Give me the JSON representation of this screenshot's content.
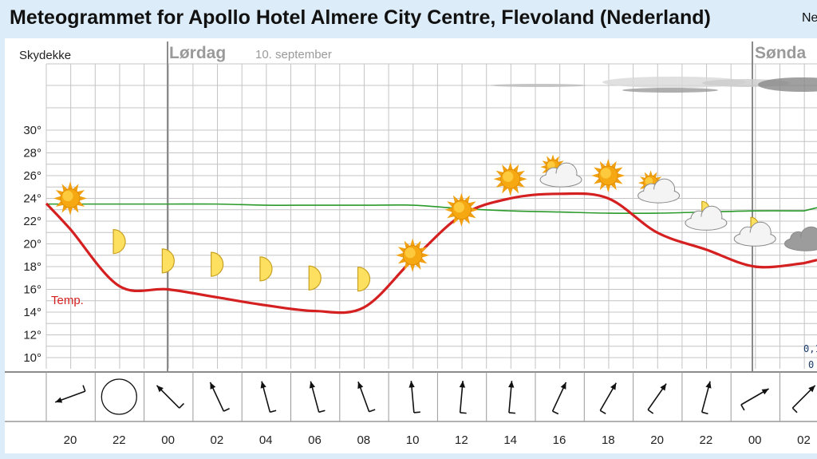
{
  "header": {
    "title": "Meteogrammet for Apollo Hotel Almere City Centre, Flevoland (Nederland)",
    "title_cut": "Ne"
  },
  "labels": {
    "cloud_cover": "Skydekke",
    "temp_series": "Temp.",
    "day1": "Lørdag",
    "date1": "10. september",
    "day2": "Sønda",
    "precip_top": "0,1",
    "precip_bottom": "0"
  },
  "colors": {
    "temp": "#d42020",
    "dew": "#2a9a2a",
    "grid": "#c4c4c4",
    "day_divider": "#8a8a8a"
  },
  "chart_data": {
    "type": "line",
    "x_hours": [
      "20",
      "22",
      "00",
      "02",
      "04",
      "06",
      "08",
      "10",
      "12",
      "14",
      "16",
      "18",
      "20",
      "22",
      "00",
      "02"
    ],
    "y_ticks": [
      "30°",
      "28°",
      "26°",
      "24°",
      "22°",
      "20°",
      "18°",
      "16°",
      "14°",
      "12°",
      "10°"
    ],
    "ylim": [
      10,
      30
    ],
    "series": [
      {
        "name": "Temp.",
        "values": [
          21.3,
          16.3,
          16.0,
          15.3,
          14.6,
          14.1,
          14.4,
          18.6,
          22.5,
          24.0,
          24.4,
          24.0,
          21.0,
          19.5,
          18.0,
          18.3
        ]
      },
      {
        "values": [
          23.5,
          23.5,
          23.5,
          23.5,
          23.4,
          23.4,
          23.4,
          23.4,
          23.1,
          22.9,
          22.8,
          22.7,
          22.7,
          22.8,
          22.9,
          22.9
        ]
      }
    ],
    "symbols": [
      "sun",
      "moon",
      "moon",
      "moon",
      "moon",
      "moon",
      "moon",
      "sun",
      "sun",
      "sun",
      "sun-cloud",
      "sun",
      "sun-cloud",
      "moon-cloud",
      "moon-cloud",
      "cloud"
    ],
    "symbol_temps": [
      24.0,
      20.2,
      18.5,
      18.2,
      17.8,
      17.0,
      16.9,
      19.0,
      23.0,
      25.7,
      26.2,
      26.0,
      24.8,
      22.4,
      21.0,
      20.3
    ],
    "wind_directions_deg": [
      250,
      null,
      315,
      335,
      345,
      345,
      340,
      355,
      5,
      5,
      25,
      30,
      35,
      15,
      60,
      45
    ],
    "wind_speed_barbs": [
      1,
      null,
      1,
      1,
      1,
      1,
      1,
      1,
      1,
      1,
      1,
      1,
      1,
      1,
      1,
      1
    ],
    "grid": true
  }
}
